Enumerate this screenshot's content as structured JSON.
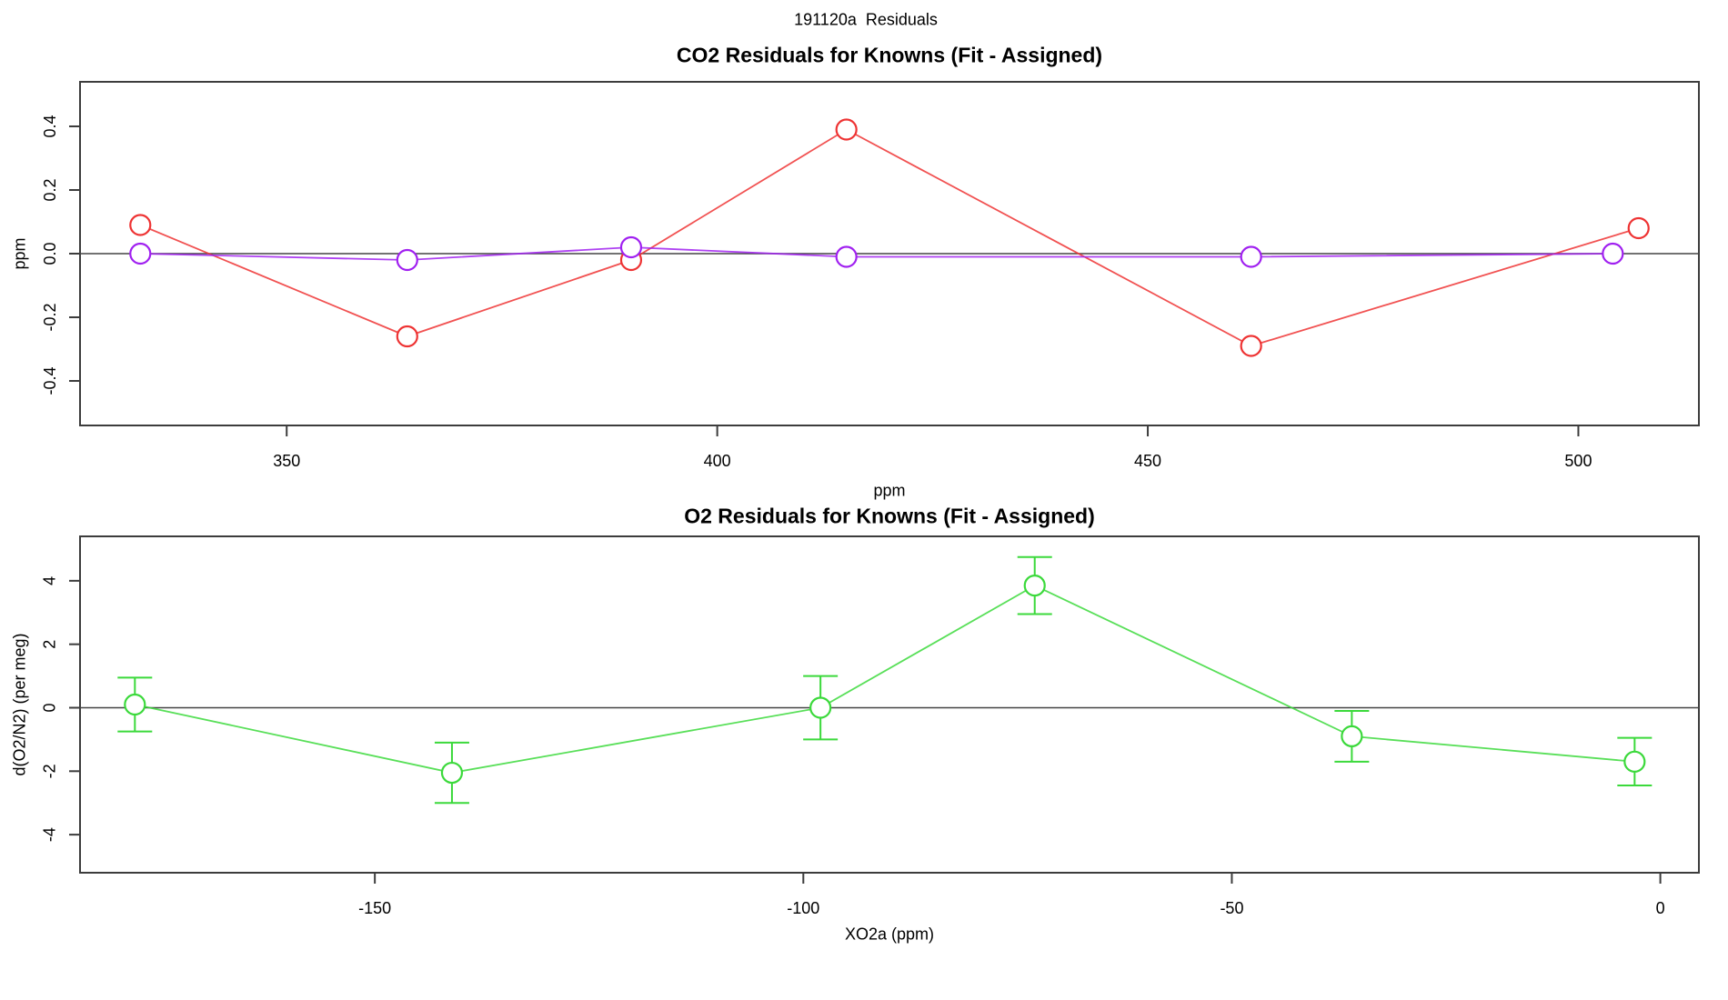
{
  "page_title": "191120a  Residuals",
  "chart_data": [
    {
      "type": "line",
      "title": "CO2 Residuals for Knowns (Fit - Assigned)",
      "xlabel": "ppm",
      "ylabel": "ppm",
      "xlim": [
        326,
        514
      ],
      "ylim": [
        -0.54,
        0.54
      ],
      "xticks": [
        350,
        400,
        450,
        500
      ],
      "xtick_labels": [
        "350",
        "400",
        "450",
        "500"
      ],
      "yticks": [
        -0.4,
        -0.2,
        0,
        0.2,
        0.4
      ],
      "ytick_labels": [
        "-0.4",
        "-0.2",
        "0.0",
        "0.2",
        "0.4"
      ],
      "grid": false,
      "legend": "none",
      "zero_line": true,
      "series": [
        {
          "name": "co2-residual-red",
          "color": "#ee3333",
          "marker": "open-circle",
          "x": [
            333,
            364,
            390,
            415,
            462,
            507
          ],
          "y": [
            0.09,
            -0.26,
            -0.02,
            0.39,
            -0.29,
            0.08
          ]
        },
        {
          "name": "co2-residual-purple",
          "color": "#a020f0",
          "marker": "open-circle",
          "x": [
            333,
            364,
            390,
            415,
            462,
            504
          ],
          "y": [
            0.0,
            -0.02,
            0.02,
            -0.01,
            -0.01,
            0.0
          ]
        }
      ]
    },
    {
      "type": "line",
      "title": "O2 Residuals for Knowns (Fit - Assigned)",
      "xlabel": "XO2a (ppm)",
      "ylabel": "d(O2/N2) (per meg)",
      "xlim": [
        -184.4,
        4.5
      ],
      "ylim": [
        -5.2,
        5.4
      ],
      "xticks": [
        -150,
        -100,
        -50,
        0
      ],
      "xtick_labels": [
        "-150",
        "-100",
        "-50",
        "0"
      ],
      "yticks": [
        -4,
        -2,
        0,
        2,
        4
      ],
      "ytick_labels": [
        "-4",
        "-2",
        "0",
        "2",
        "4"
      ],
      "grid": false,
      "legend": "none",
      "zero_line": true,
      "series": [
        {
          "name": "o2-residual-green",
          "color": "#3bd93b",
          "marker": "open-circle",
          "error_bars": true,
          "x": [
            -178,
            -141,
            -98,
            -73,
            -36,
            -3
          ],
          "y": [
            0.1,
            -2.05,
            0.0,
            3.85,
            -0.9,
            -1.7
          ],
          "yerr": [
            0.85,
            0.95,
            1.0,
            0.9,
            0.8,
            0.75
          ]
        }
      ]
    }
  ]
}
